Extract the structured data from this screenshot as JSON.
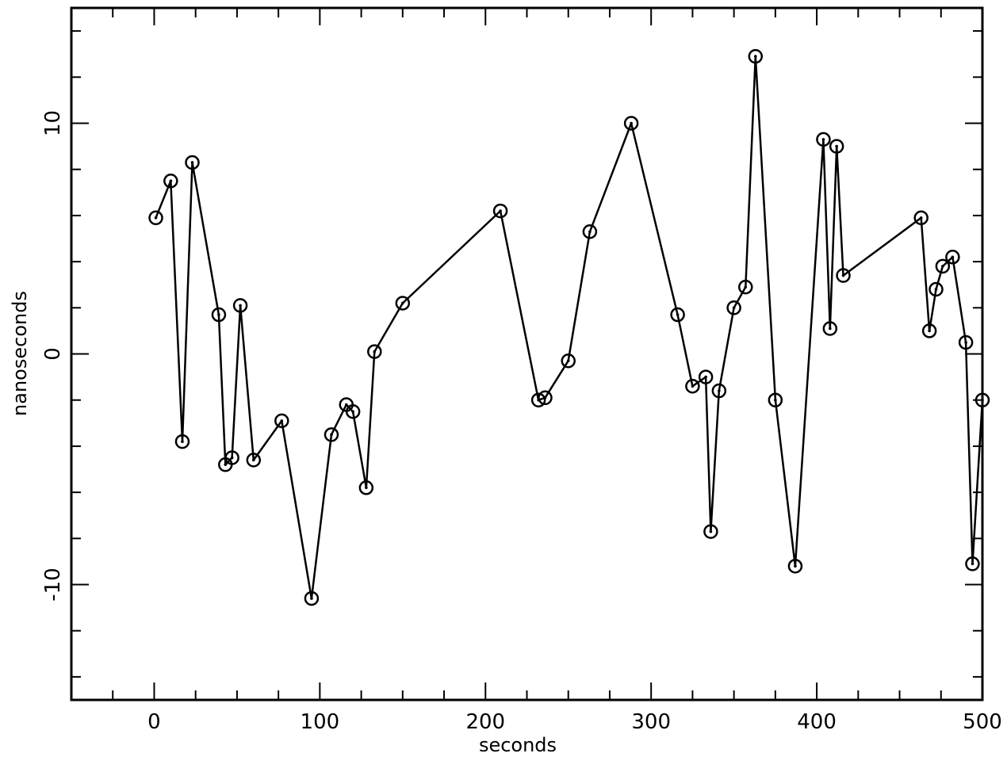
{
  "chart_data": {
    "type": "line",
    "title": "",
    "xlabel": "seconds",
    "ylabel": "nanoseconds",
    "xlim": [
      -50,
      500
    ],
    "ylim": [
      -15,
      15
    ],
    "x_ticks": [
      0,
      100,
      200,
      300,
      400,
      500
    ],
    "y_ticks": [
      -10,
      0,
      10
    ],
    "grid": false,
    "marker": "circle",
    "series": [
      {
        "name": "",
        "points": [
          [
            1,
            5.9
          ],
          [
            10,
            7.5
          ],
          [
            17,
            -3.8
          ],
          [
            23,
            8.3
          ],
          [
            39,
            1.7
          ],
          [
            43,
            -4.8
          ],
          [
            47,
            -4.5
          ],
          [
            52,
            2.1
          ],
          [
            60,
            -4.6
          ],
          [
            77,
            -2.9
          ],
          [
            95,
            -10.6
          ],
          [
            107,
            -3.5
          ],
          [
            116,
            -2.2
          ],
          [
            120,
            -2.5
          ],
          [
            128,
            -5.8
          ],
          [
            133,
            0.1
          ],
          [
            150,
            2.2
          ],
          [
            209,
            6.2
          ],
          [
            232,
            -2.0
          ],
          [
            236,
            -1.9
          ],
          [
            250,
            -0.3
          ],
          [
            263,
            5.3
          ],
          [
            288,
            10.0
          ],
          [
            316,
            1.7
          ],
          [
            325,
            -1.4
          ],
          [
            333,
            -1.0
          ],
          [
            336,
            -7.7
          ],
          [
            341,
            -1.6
          ],
          [
            350,
            2.0
          ],
          [
            357,
            2.9
          ],
          [
            363,
            12.9
          ],
          [
            375,
            -2.0
          ],
          [
            387,
            -9.2
          ],
          [
            404,
            9.3
          ],
          [
            408,
            1.1
          ],
          [
            412,
            9.0
          ],
          [
            416,
            3.4
          ],
          [
            463,
            5.9
          ],
          [
            468,
            1.0
          ],
          [
            472,
            2.8
          ],
          [
            476,
            3.8
          ],
          [
            482,
            4.2
          ],
          [
            490,
            0.5
          ],
          [
            494,
            -9.1
          ],
          [
            500,
            -2.0
          ]
        ]
      }
    ]
  }
}
